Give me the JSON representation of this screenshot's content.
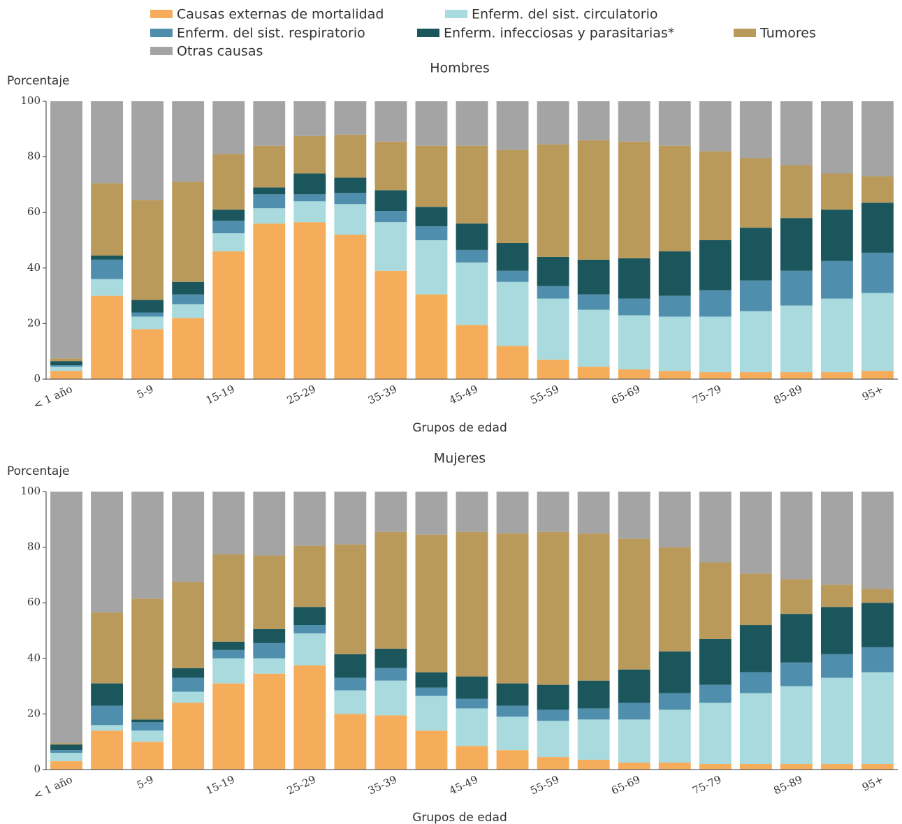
{
  "chart_data": [
    {
      "type": "stacked_bar",
      "title": "Hombres",
      "y_label": "Porcentaje",
      "x_label": "Grupos de edad",
      "categories": [
        "< 1 año",
        null,
        "5-9",
        null,
        "15-19",
        null,
        "25-29",
        null,
        "35-39",
        null,
        "45-49",
        null,
        "55-59",
        null,
        "65-69",
        null,
        "75-79",
        null,
        "85-89",
        null,
        "95+"
      ],
      "ylim": [
        0,
        100
      ],
      "yticks": [
        0,
        20,
        40,
        60,
        80,
        100
      ],
      "grid": false,
      "series": [
        {
          "name": "Causas externas de mortalidad",
          "color": "#f6ad5b",
          "values": [
            3,
            30,
            18,
            22,
            46,
            56,
            56.5,
            52,
            39,
            30.5,
            19.5,
            12,
            7,
            4.5,
            3.5,
            3,
            2.5,
            2.5,
            2.5,
            2.5,
            3
          ]
        },
        {
          "name": "Enferm. del sist. circulatorio",
          "color": "#a9dadd",
          "values": [
            1.5,
            6,
            4.5,
            5,
            6.5,
            5.5,
            7.5,
            11,
            17.5,
            19.5,
            22.5,
            23,
            22,
            20.5,
            19.5,
            19.5,
            20,
            22,
            24,
            26.5,
            28
          ]
        },
        {
          "name": "Enferm. del sist. respiratorio",
          "color": "#4f8fad",
          "values": [
            0.5,
            7,
            1.5,
            3.5,
            4.5,
            5,
            2.5,
            4,
            4,
            5,
            4.5,
            4,
            4.5,
            5.5,
            6,
            7.5,
            9.5,
            11,
            12.5,
            13.5,
            14.5
          ]
        },
        {
          "name": "Enferm. infecciosas y parasitarias*",
          "color": "#1c565d",
          "values": [
            1.5,
            1.5,
            4.5,
            4.5,
            4,
            2.5,
            7.5,
            5.5,
            7.5,
            7,
            9.5,
            10,
            10.5,
            12.5,
            14.5,
            16,
            18,
            19,
            19,
            18.5,
            18
          ]
        },
        {
          "name": "Tumores",
          "color": "#b99a5b",
          "values": [
            1,
            26,
            36,
            36,
            20,
            15,
            13.5,
            15.5,
            17.5,
            22,
            28,
            33.5,
            40.5,
            43,
            42,
            38,
            32,
            25,
            19,
            13,
            9.5
          ]
        },
        {
          "name": "Otras causas",
          "color": "#a4a4a4",
          "values": [
            92.5,
            29.5,
            35.5,
            29,
            19,
            16,
            12.5,
            12,
            14.5,
            16,
            16,
            17.5,
            15.5,
            14,
            14.5,
            16,
            18,
            20.5,
            23,
            26,
            27
          ]
        }
      ]
    },
    {
      "type": "stacked_bar",
      "title": "Mujeres",
      "y_label": "Porcentaje",
      "x_label": "Grupos de edad",
      "categories": [
        "< 1 año",
        null,
        "5-9",
        null,
        "15-19",
        null,
        "25-29",
        null,
        "35-39",
        null,
        "45-49",
        null,
        "55-59",
        null,
        "65-69",
        null,
        "75-79",
        null,
        "85-89",
        null,
        "95+"
      ],
      "ylim": [
        0,
        100
      ],
      "yticks": [
        0,
        20,
        40,
        60,
        80,
        100
      ],
      "grid": false,
      "series": [
        {
          "name": "Causas externas de mortalidad",
          "color": "#f6ad5b",
          "values": [
            3,
            14,
            10,
            24,
            31,
            34.5,
            37.5,
            20,
            19.5,
            14,
            8.5,
            7,
            4.5,
            3.5,
            2.5,
            2.5,
            2,
            2,
            2,
            2,
            2
          ]
        },
        {
          "name": "Enferm. del sist. circulatorio",
          "color": "#a9dadd",
          "values": [
            3,
            2,
            4,
            4,
            9,
            5.5,
            11.5,
            8.5,
            12.5,
            12.5,
            13.5,
            12,
            13,
            14.5,
            15.5,
            19,
            22,
            25.5,
            28,
            31,
            33
          ]
        },
        {
          "name": "Enferm. del sist. respiratorio",
          "color": "#4f8fad",
          "values": [
            1,
            7,
            3,
            5,
            3,
            5.5,
            3,
            4.5,
            4.5,
            3,
            3.5,
            4,
            4,
            4,
            6,
            6,
            6.5,
            7.5,
            8.5,
            8.5,
            9
          ]
        },
        {
          "name": "Enferm. infecciosas y parasitarias*",
          "color": "#1c565d",
          "values": [
            2,
            8,
            1,
            3.5,
            3,
            5,
            6.5,
            8.5,
            7,
            5.5,
            8,
            8,
            9,
            10,
            12,
            15,
            16.5,
            17,
            17.5,
            17,
            16
          ]
        },
        {
          "name": "Tumores",
          "color": "#b99a5b",
          "values": [
            0.5,
            25.5,
            43.5,
            31,
            31.5,
            26.5,
            22,
            39.5,
            42,
            49.5,
            52,
            54,
            55,
            53,
            47,
            37.5,
            27.5,
            18.5,
            12.5,
            8,
            5
          ]
        },
        {
          "name": "Otras causas",
          "color": "#a4a4a4",
          "values": [
            90.5,
            43.5,
            38.5,
            32.5,
            22.5,
            23,
            19.5,
            19,
            14.5,
            15.5,
            14.5,
            15,
            14.5,
            15,
            17,
            20,
            25.5,
            29.5,
            31.5,
            33.5,
            35
          ]
        }
      ]
    }
  ]
}
